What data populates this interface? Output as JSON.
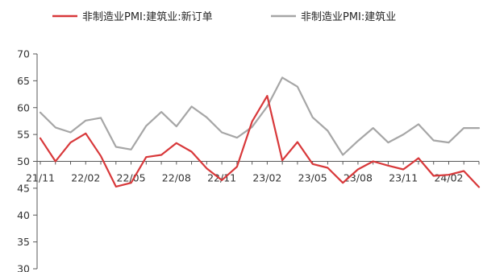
{
  "colors": {
    "new_orders": "#d8383a",
    "construction": "#a6a6a6",
    "axis": "#595959"
  },
  "chart_data": {
    "type": "line",
    "x": [
      "21/11",
      "21/12",
      "22/01",
      "22/02",
      "22/03",
      "22/04",
      "22/05",
      "22/06",
      "22/07",
      "22/08",
      "22/09",
      "22/10",
      "22/11",
      "22/12",
      "23/01",
      "23/02",
      "23/03",
      "23/04",
      "23/05",
      "23/06",
      "23/07",
      "23/08",
      "23/09",
      "23/10",
      "23/11",
      "23/12",
      "24/01",
      "24/02",
      "24/03",
      "24/04"
    ],
    "x_tick_labels": [
      "21/11",
      "22/02",
      "22/05",
      "22/08",
      "22/11",
      "23/02",
      "23/05",
      "23/08",
      "23/11",
      "24/02"
    ],
    "y_ticks": [
      30,
      35,
      40,
      45,
      50,
      55,
      60,
      65,
      70
    ],
    "ylim": [
      30,
      70
    ],
    "x_axis_crosses_y": 50,
    "series": [
      {
        "name": "非制造业PMI:建筑业:新订单",
        "color": "#d8383a",
        "values": [
          54.3,
          50.0,
          53.5,
          55.2,
          51.0,
          45.3,
          46.0,
          50.8,
          51.2,
          53.4,
          51.8,
          48.7,
          46.5,
          49.0,
          57.4,
          62.2,
          50.2,
          53.6,
          49.5,
          48.8,
          46.0,
          48.5,
          50.0,
          49.2,
          48.5,
          50.6,
          47.3,
          47.5,
          48.2,
          45.2
        ]
      },
      {
        "name": "非制造业PMI:建筑业",
        "color": "#a6a6a6",
        "values": [
          59.1,
          56.3,
          55.4,
          57.6,
          58.1,
          52.7,
          52.2,
          56.6,
          59.2,
          56.5,
          60.2,
          58.2,
          55.4,
          54.4,
          56.4,
          60.2,
          65.6,
          63.9,
          58.2,
          55.7,
          51.2,
          53.8,
          56.2,
          53.5,
          55.0,
          56.9,
          53.9,
          53.5,
          56.2,
          56.2
        ]
      }
    ]
  }
}
